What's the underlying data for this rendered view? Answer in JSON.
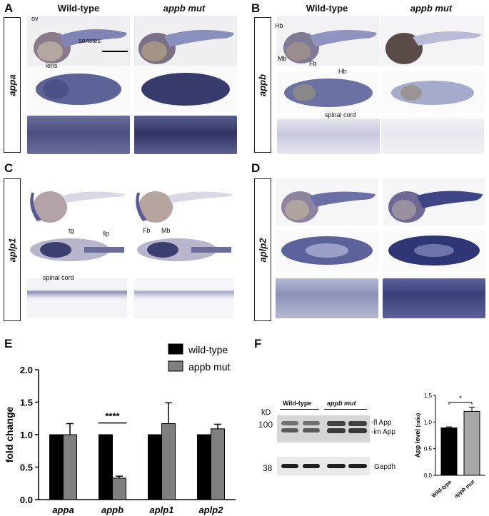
{
  "panels": {
    "A": {
      "letter": "A",
      "gene": "appa",
      "col_left": "Wild-type",
      "col_right": "appb mut",
      "annotations": {
        "ov": "ov",
        "somites": "somites",
        "lens": "lens"
      }
    },
    "B": {
      "letter": "B",
      "gene": "appb",
      "col_left": "Wild-type",
      "col_right": "appb mut",
      "annotations": {
        "hb1": "Hb",
        "mb": "Mb",
        "fb": "Fb",
        "hb2": "Hb",
        "spinal": "spinal cord"
      }
    },
    "C": {
      "letter": "C",
      "gene": "aplp1",
      "annotations": {
        "tg": "tg",
        "llp": "llp",
        "fb": "Fb",
        "mb": "Mb",
        "spinal": "spinal cord"
      }
    },
    "D": {
      "letter": "D",
      "gene": "aplp2"
    },
    "F": {
      "letter": "F",
      "blot": {
        "kd": "kD",
        "m100": "100",
        "m38": "38",
        "group_wt": "Wild-type",
        "group_mut": "appb mut",
        "fl": "-fl App",
        "im": "-im App",
        "gapdh": "Gapdh"
      }
    }
  },
  "chart_data": [
    {
      "id": "E",
      "type": "bar",
      "letter": "E",
      "categories": [
        "appa",
        "appb",
        "aplp1",
        "aplp2"
      ],
      "series": [
        {
          "name": "wild-type",
          "color": "#000000",
          "values": [
            1.0,
            1.0,
            1.0,
            1.0
          ],
          "errors": [
            0,
            0,
            0,
            0
          ]
        },
        {
          "name": "appb mut",
          "color": "#7f7f7f",
          "values": [
            1.0,
            0.33,
            1.17,
            1.09
          ],
          "errors": [
            0.17,
            0.03,
            0.32,
            0.07
          ]
        }
      ],
      "ylabel": "fold change",
      "ylim": [
        0.0,
        2.0
      ],
      "yticks": [
        "0.0",
        "0.5",
        "1.0",
        "1.5",
        "2.0"
      ],
      "significance": "****"
    },
    {
      "id": "F-quant",
      "type": "bar",
      "categories": [
        "Wild-type",
        "appb mut"
      ],
      "values": [
        0.89,
        1.2
      ],
      "errors": [
        0.02,
        0.08
      ],
      "colors": [
        "#000000",
        "#a8a8a8"
      ],
      "ylabel": "App level",
      "ylabel_sub": "(ratio)",
      "ylim": [
        0.0,
        1.5
      ],
      "yticks": [
        "0.0",
        "0.5",
        "1.0",
        "1.5"
      ],
      "significance": "*"
    }
  ]
}
